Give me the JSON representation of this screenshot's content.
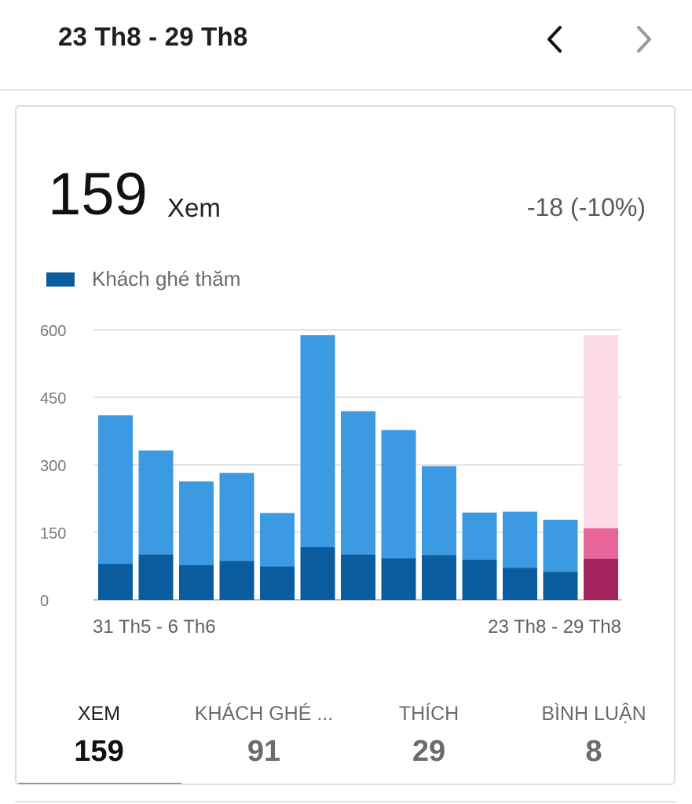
{
  "header": {
    "range": "23 Th8 - 29 Th8",
    "prev_icon": "chevron-left-icon",
    "next_icon": "chevron-right-icon"
  },
  "summary": {
    "value": "159",
    "unit": "Xem",
    "delta": "-18 (-10%)"
  },
  "legend": {
    "label": "Khách ghé thăm",
    "color": "#0a5c9e"
  },
  "chart_data": {
    "type": "bar",
    "ylim": [
      0,
      600
    ],
    "yticks": [
      "600",
      "450",
      "300",
      "150",
      "0"
    ],
    "ytick_values": [
      600,
      450,
      300,
      150,
      0
    ],
    "x_label_first": "31 Th5 - 6 Th6",
    "x_label_last": "23 Th8 - 29 Th8",
    "series": [
      {
        "name": "Xem",
        "values": [
          410,
          332,
          263,
          282,
          193,
          588,
          419,
          377,
          297,
          194,
          196,
          178,
          159
        ]
      },
      {
        "name": "Khách ghé thăm",
        "values": [
          80,
          100,
          77,
          86,
          74,
          117,
          100,
          92,
          99,
          89,
          71,
          62,
          91
        ]
      }
    ],
    "highlight_index": 12,
    "highlight_background_value": 588,
    "colors": {
      "views": "#3b9ae1",
      "visitors": "#0a5c9e",
      "views_highlight": "#e8659a",
      "visitors_highlight": "#a5235d",
      "highlight_bg": "#fadbe7",
      "grid": "#dcdcdc",
      "tick": "#7a7a7a"
    }
  },
  "tabs": [
    {
      "label": "XEM",
      "value": "159"
    },
    {
      "label": "KHÁCH GHÉ ...",
      "value": "91"
    },
    {
      "label": "THÍCH",
      "value": "29"
    },
    {
      "label": "BÌNH LUẬN",
      "value": "8"
    }
  ]
}
